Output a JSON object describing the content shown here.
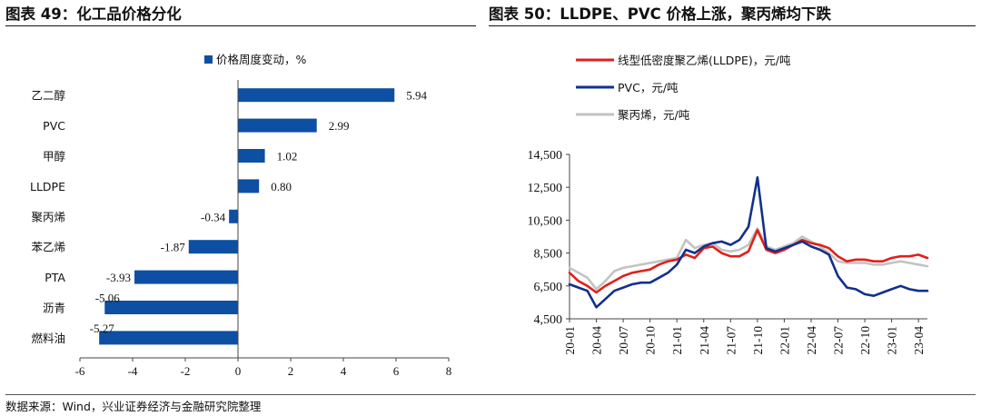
{
  "header": {
    "left_title": "图表 49：化工品价格分化",
    "right_title": "图表 50：LLDPE、PVC 价格上涨，聚丙烯均下跌"
  },
  "footer": {
    "source": "数据来源：Wind，兴业证券经济与金融研究院整理"
  },
  "chart_data": [
    {
      "type": "bar",
      "orientation": "horizontal",
      "categories": [
        "乙二醇",
        "PVC",
        "甲醇",
        "LLDPE",
        "聚丙烯",
        "苯乙烯",
        "PTA",
        "沥青",
        "燃料油"
      ],
      "series": [
        {
          "name": "价格周度变动，%",
          "values": [
            5.94,
            2.99,
            1.02,
            0.8,
            -0.34,
            -1.87,
            -3.93,
            -5.06,
            -5.27
          ],
          "color": "#0d4fa3"
        }
      ],
      "value_labels": [
        "5.94",
        "2.99",
        "1.02",
        "0.80",
        "-0.34",
        "-1.87",
        "-3.93",
        "-5.06",
        "-5.27"
      ],
      "xticks": [
        "-6",
        "-4",
        "-2",
        "0",
        "2",
        "4",
        "6",
        "8"
      ],
      "xlim": [
        -6,
        8
      ],
      "legend": "top",
      "grid": false
    },
    {
      "type": "line",
      "x_ticks": [
        "20-01",
        "20-04",
        "20-07",
        "20-10",
        "21-01",
        "21-04",
        "21-07",
        "21-10",
        "22-01",
        "22-04",
        "22-07",
        "22-10",
        "23-01",
        "23-04"
      ],
      "y_ticks": [
        "4,500",
        "6,500",
        "8,500",
        "10,500",
        "12,500",
        "14,500"
      ],
      "ylim": [
        4500,
        14500
      ],
      "legend": "top-left",
      "grid": false,
      "series": [
        {
          "name": "线型低密度聚乙烯(LLDPE)，元/吨",
          "color": "#e0201b",
          "x": [
            "20-01",
            "20-02",
            "20-03",
            "20-04",
            "20-05",
            "20-06",
            "20-07",
            "20-08",
            "20-09",
            "20-10",
            "20-11",
            "20-12",
            "21-01",
            "21-02",
            "21-03",
            "21-04",
            "21-05",
            "21-06",
            "21-07",
            "21-08",
            "21-09",
            "21-10",
            "21-11",
            "21-12",
            "22-01",
            "22-02",
            "22-03",
            "22-04",
            "22-05",
            "22-06",
            "22-07",
            "22-08",
            "22-09",
            "22-10",
            "22-11",
            "22-12",
            "23-01",
            "23-02",
            "23-03",
            "23-04",
            "23-05"
          ],
          "values": [
            7300,
            6800,
            6500,
            6100,
            6500,
            6800,
            7100,
            7300,
            7400,
            7500,
            7800,
            8000,
            8100,
            8400,
            8200,
            8800,
            8900,
            8500,
            8300,
            8300,
            8600,
            9900,
            8700,
            8500,
            8700,
            9000,
            9300,
            9100,
            9000,
            8800,
            8300,
            8000,
            8100,
            8100,
            8000,
            8000,
            8200,
            8300,
            8300,
            8400,
            8200
          ]
        },
        {
          "name": "PVC，元/吨",
          "color": "#12308c",
          "x": [
            "20-01",
            "20-02",
            "20-03",
            "20-04",
            "20-05",
            "20-06",
            "20-07",
            "20-08",
            "20-09",
            "20-10",
            "20-11",
            "20-12",
            "21-01",
            "21-02",
            "21-03",
            "21-04",
            "21-05",
            "21-06",
            "21-07",
            "21-08",
            "21-09",
            "21-10",
            "21-11",
            "21-12",
            "22-01",
            "22-02",
            "22-03",
            "22-04",
            "22-05",
            "22-06",
            "22-07",
            "22-08",
            "22-09",
            "22-10",
            "22-11",
            "22-12",
            "23-01",
            "23-02",
            "23-03",
            "23-04",
            "23-05"
          ],
          "values": [
            6600,
            6400,
            6200,
            5200,
            5700,
            6200,
            6400,
            6600,
            6700,
            6700,
            7000,
            7300,
            7800,
            8700,
            8500,
            8900,
            9100,
            9200,
            9000,
            9300,
            10100,
            13100,
            8800,
            8600,
            8800,
            9000,
            9200,
            8900,
            8700,
            8400,
            7100,
            6400,
            6300,
            6000,
            5900,
            6100,
            6300,
            6500,
            6300,
            6200,
            6200
          ]
        },
        {
          "name": "聚丙烯，元/吨",
          "color": "#c3c3c3",
          "x": [
            "20-01",
            "20-02",
            "20-03",
            "20-04",
            "20-05",
            "20-06",
            "20-07",
            "20-08",
            "20-09",
            "20-10",
            "20-11",
            "20-12",
            "21-01",
            "21-02",
            "21-03",
            "21-04",
            "21-05",
            "21-06",
            "21-07",
            "21-08",
            "21-09",
            "21-10",
            "21-11",
            "21-12",
            "22-01",
            "22-02",
            "22-03",
            "22-04",
            "22-05",
            "22-06",
            "22-07",
            "22-08",
            "22-09",
            "22-10",
            "22-11",
            "22-12",
            "23-01",
            "23-02",
            "23-03",
            "23-04",
            "23-05"
          ],
          "values": [
            7600,
            7300,
            7000,
            6300,
            6800,
            7400,
            7600,
            7700,
            7800,
            7900,
            8000,
            8100,
            8200,
            9300,
            8800,
            9000,
            9100,
            8700,
            8600,
            8700,
            9000,
            10000,
            8900,
            8700,
            8900,
            9100,
            9500,
            9200,
            8900,
            8500,
            8000,
            7900,
            7900,
            7900,
            7800,
            7800,
            7900,
            8000,
            7900,
            7800,
            7700
          ]
        }
      ]
    }
  ]
}
